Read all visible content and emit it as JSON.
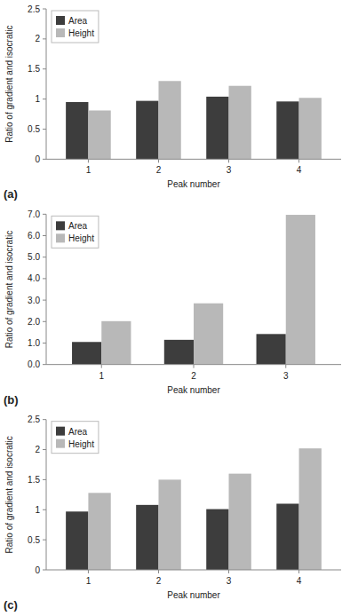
{
  "chart_data": [
    {
      "type": "bar",
      "categories": [
        1,
        2,
        3,
        4
      ],
      "series": [
        {
          "name": "Area",
          "color": "#3d3d3d",
          "values": [
            0.95,
            0.97,
            1.04,
            0.96
          ]
        },
        {
          "name": "Height",
          "color": "#b8b8b8",
          "values": [
            0.81,
            1.3,
            1.22,
            1.02
          ]
        }
      ],
      "xlabel": "Peak number",
      "ylabel": "Ratio of gradient and isocratic",
      "ylim": [
        0,
        2.5
      ],
      "yticks": [
        0,
        0.5,
        1,
        1.5,
        2,
        2.5
      ],
      "legend": "upper left",
      "annotations": [
        "(a)"
      ]
    },
    {
      "type": "bar",
      "categories": [
        1,
        2,
        3
      ],
      "series": [
        {
          "name": "Area",
          "color": "#3d3d3d",
          "values": [
            1.05,
            1.15,
            1.42
          ]
        },
        {
          "name": "Height",
          "color": "#b8b8b8",
          "values": [
            2.02,
            2.85,
            6.97
          ]
        }
      ],
      "xlabel": "Peak number",
      "ylabel": "Ratio of gradient and isocratic",
      "ylim": [
        0,
        7.0
      ],
      "yticks": [
        {
          "value": 0,
          "label": "0.0"
        },
        {
          "value": 1,
          "label": "1.0"
        },
        {
          "value": 2,
          "label": "2.0"
        },
        {
          "value": 3,
          "label": "3.0"
        },
        {
          "value": 4,
          "label": "4.0"
        },
        {
          "value": 5,
          "label": "5.0"
        },
        {
          "value": 6,
          "label": "6.0"
        },
        {
          "value": 7,
          "label": "7.0"
        }
      ],
      "legend": "upper left",
      "annotations": [
        "(b)"
      ]
    },
    {
      "type": "bar",
      "categories": [
        1,
        2,
        3,
        4
      ],
      "series": [
        {
          "name": "Area",
          "color": "#3d3d3d",
          "values": [
            0.97,
            1.08,
            1.01,
            1.1
          ]
        },
        {
          "name": "Height",
          "color": "#b8b8b8",
          "values": [
            1.28,
            1.5,
            1.6,
            2.02
          ]
        }
      ],
      "xlabel": "Peak number",
      "ylabel": "Ratio of gradient and isocratic",
      "ylim": [
        0,
        2.5
      ],
      "yticks": [
        0,
        0.5,
        1,
        1.5,
        2,
        2.5
      ],
      "legend": "upper left",
      "annotations": [
        "(c)"
      ]
    }
  ]
}
